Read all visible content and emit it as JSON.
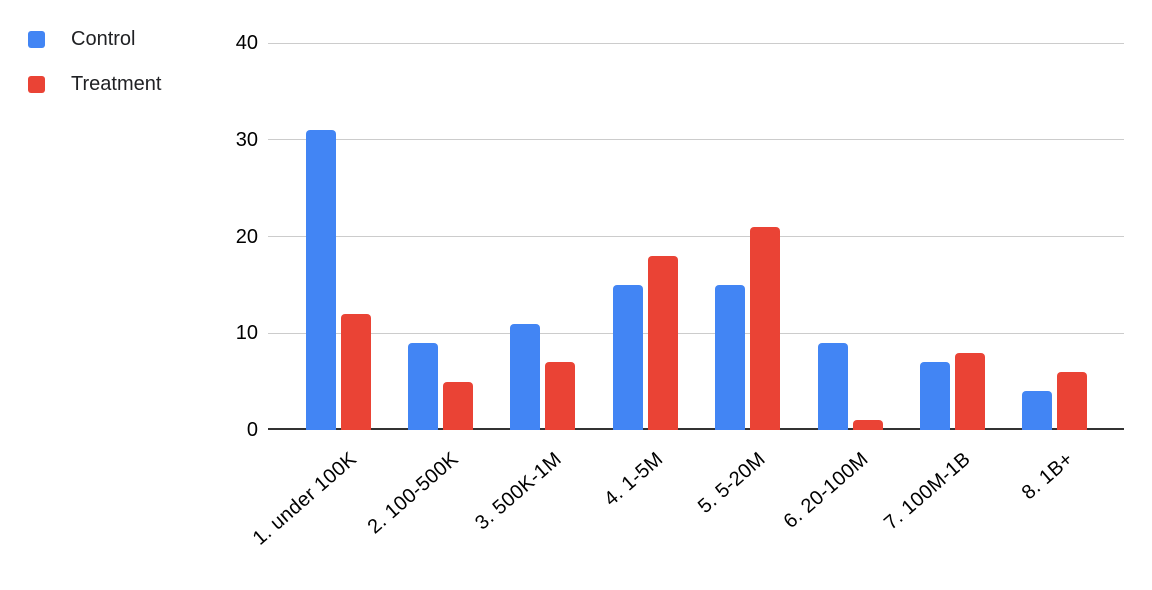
{
  "chart_data": {
    "type": "bar",
    "categories": [
      "1. under 100K",
      "2. 100-500K",
      "3. 500K-1M",
      "4. 1-5M",
      "5. 5-20M",
      "6. 20-100M",
      "7. 100M-1B",
      "8. 1B+"
    ],
    "series": [
      {
        "name": "Control",
        "color": "#4285F4",
        "values": [
          31,
          9,
          11,
          15,
          15,
          9,
          7,
          4
        ]
      },
      {
        "name": "Treatment",
        "color": "#EA4335",
        "values": [
          12,
          5,
          7,
          18,
          21,
          1,
          8,
          6
        ]
      }
    ],
    "title": "",
    "xlabel": "",
    "ylabel": "",
    "ylim": [
      0,
      40
    ],
    "yticks": [
      0,
      10,
      20,
      30,
      40
    ],
    "grid": true,
    "legend_position": "top-left",
    "x_label_rotation_deg": -41,
    "colors": {
      "background": "#ffffff",
      "gridline": "#cccccc",
      "axis_line": "#333333",
      "tick_label": "#000000",
      "legend_text": "#202124"
    }
  }
}
